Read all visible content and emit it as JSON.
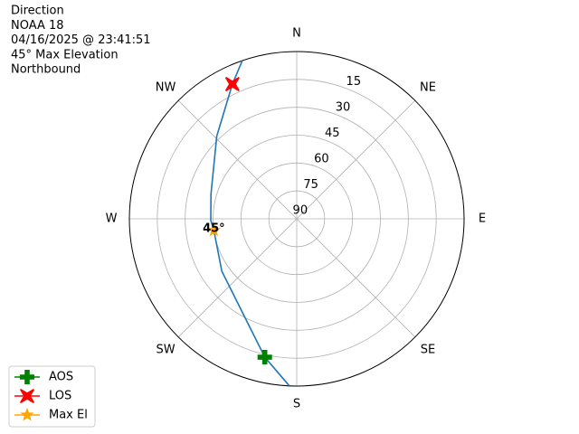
{
  "chart_data": {
    "type": "polar",
    "title": [
      "Direction",
      "NOAA 18",
      "04/16/2025 @ 23:41:51",
      "45° Max Elevation",
      "Northbound"
    ],
    "rlim": [
      90,
      0
    ],
    "rticks": [
      90,
      75,
      60,
      45,
      30,
      15
    ],
    "thetaticks": [
      {
        "value": 0,
        "label": "N"
      },
      {
        "value": 45,
        "label": "NE"
      },
      {
        "value": 90,
        "label": "E"
      },
      {
        "value": 135,
        "label": "SE"
      },
      {
        "value": 180,
        "label": "S"
      },
      {
        "value": 225,
        "label": "SW"
      },
      {
        "value": 270,
        "label": "W"
      },
      {
        "value": 315,
        "label": "NW"
      }
    ],
    "grid": true,
    "legend": "lower left",
    "track": {
      "color": "#1f77b4",
      "azimuth": [
        182.5,
        193,
        235,
        262,
        269,
        286,
        316,
        334.5,
        341
      ],
      "elevation": [
        0,
        13.6,
        40.8,
        45,
        43.8,
        42,
        28.1,
        9.7,
        0
      ]
    },
    "series": [
      {
        "name": "AOS",
        "color": "green",
        "marker": "plus",
        "azimuth": [
          193
        ],
        "elevation": [
          13.6
        ]
      },
      {
        "name": "LOS",
        "color": "red",
        "marker": "x",
        "azimuth": [
          334.5
        ],
        "elevation": [
          9.7
        ]
      },
      {
        "name": "Max El",
        "color": "orange",
        "marker": "star",
        "azimuth": [
          262
        ],
        "elevation": [
          45
        ],
        "value_labels": [
          "45°"
        ]
      }
    ]
  }
}
